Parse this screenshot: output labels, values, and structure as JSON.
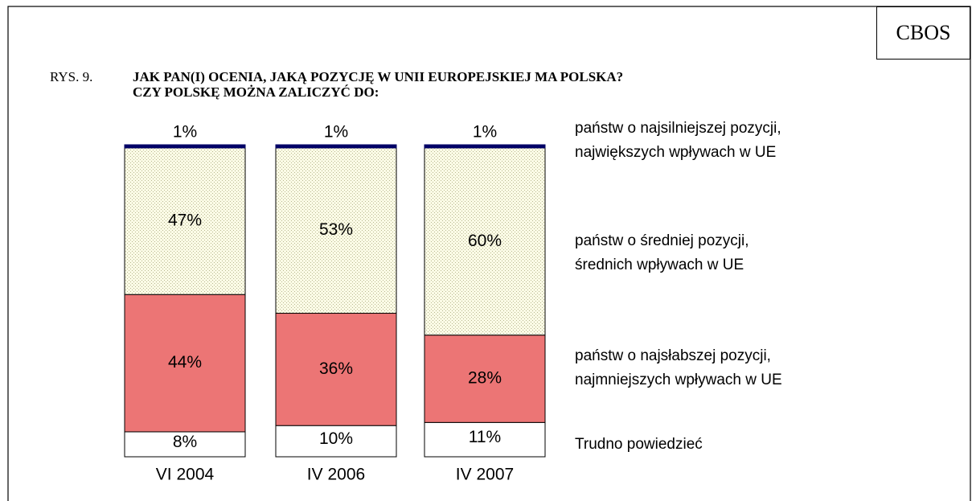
{
  "chart_data": {
    "type": "stacked_bar",
    "source": "CBOS",
    "label": "RYS. 9.",
    "title": "JAK PAN(I) OCENIA, JAKĄ POZYCJĘ W UNII EUROPEJSKIEJ MA POLSKA?\nCZY POLSKĘ MOŻNA ZALICZYĆ DO:",
    "categories": [
      "VI 2004",
      "IV 2006",
      "IV 2007"
    ],
    "ylim": [
      0,
      100
    ],
    "series": [
      {
        "name": "Trudno powiedzieć",
        "color": "#ffffff",
        "values": [
          8,
          10,
          11
        ],
        "value_labels": [
          "8%",
          "10%",
          "11%"
        ]
      },
      {
        "name": "państw o najsłabszej pozycji,\nnajmniejszych wpływach w UE",
        "color": "#ec7575",
        "values": [
          44,
          36,
          28
        ],
        "value_labels": [
          "44%",
          "36%",
          "28%"
        ]
      },
      {
        "name": "państw o średniej pozycji,\nśrednich wpływach w UE",
        "color": "#fbfbe6",
        "values": [
          47,
          53,
          60
        ],
        "value_labels": [
          "47%",
          "53%",
          "60%"
        ]
      },
      {
        "name": "państw o najsilniejszej pozycji,\nnajwiększych wpływach w UE",
        "color": "#000066",
        "values": [
          1,
          1,
          1
        ],
        "value_labels": [
          "1%",
          "1%",
          "1%"
        ]
      }
    ]
  }
}
